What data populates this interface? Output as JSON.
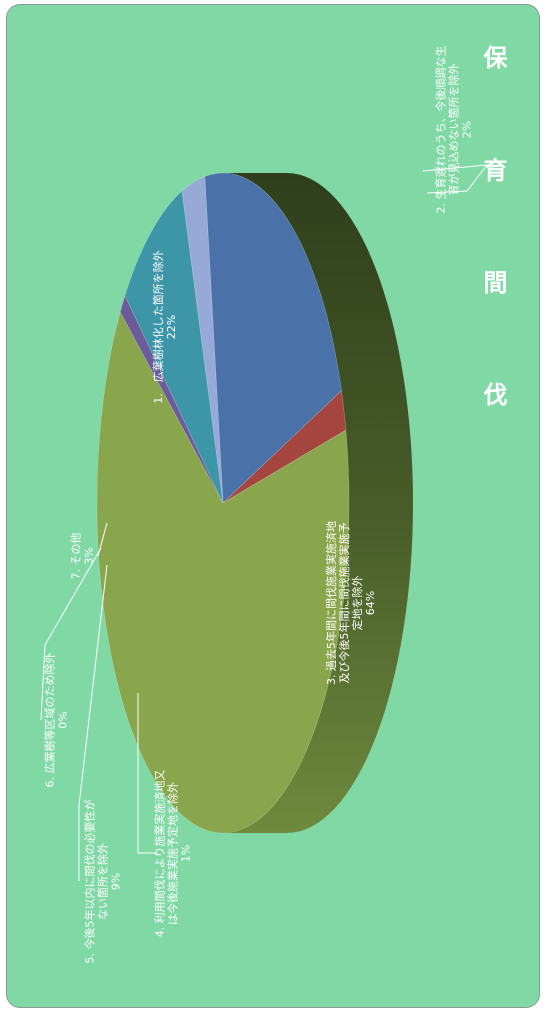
{
  "chart_data": {
    "type": "pie",
    "title": "保 育 間 伐",
    "slices": [
      {
        "label": "1.　広葉樹林化した箇所を除外",
        "lines": [
          "1.　広葉樹林化した箇所を除外"
        ],
        "pct_text": "22%",
        "value": 22,
        "color": "#4a72a9"
      },
      {
        "label": "2. 生育遅れのうち、今後順調な生育が見込めない箇所を除外",
        "lines": [
          "2. 生育遅れのうち、今後順調な生",
          "育が見込めない箇所を除外"
        ],
        "pct_text": "2%",
        "value": 2,
        "color": "#a44540"
      },
      {
        "label": "3. 過去5年間に間伐施業実施済地及び今後5年間に間伐施業実施予定地を除外",
        "lines": [
          "3. 過去5年間に間伐施業実施済地",
          "及び今後5年間に間伐施業実施予",
          "定地を除外"
        ],
        "pct_text": "64%",
        "value": 64,
        "color": "#8aa64c"
      },
      {
        "label": "4. 利用間伐により施業実施済地又は今後施業実施予定地を除外",
        "lines": [
          "4. 利用間伐により施業実施済地又",
          "は今後施業実施予定地を除外"
        ],
        "pct_text": "1%",
        "value": 1,
        "color": "#6c5b9a"
      },
      {
        "label": "5. 今後5年以内に間伐の必要性がない箇所を除外",
        "lines": [
          "5. 今後5年以内に間伐の必要性が",
          "ない箇所を除外"
        ],
        "pct_text": "9%",
        "value": 9,
        "color": "#3d95a8"
      },
      {
        "label": "6. 広葉樹等区域のため除外",
        "lines": [
          "6. 広葉樹等区域のため除外"
        ],
        "pct_text": "0%",
        "value": 0,
        "color": "#d68a3a"
      },
      {
        "label": "7. その他",
        "lines": [
          "7. その他"
        ],
        "pct_text": "3%",
        "value": 3,
        "color": "#97a9d6"
      }
    ]
  }
}
